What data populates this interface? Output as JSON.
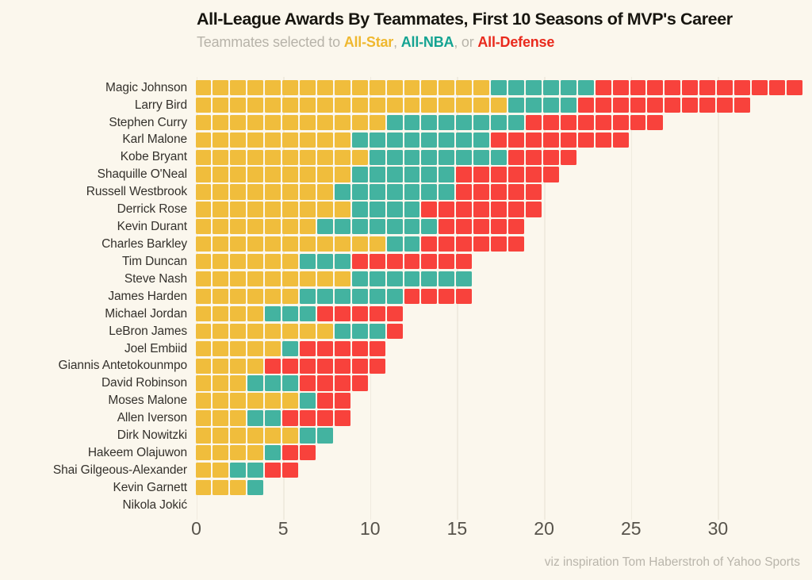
{
  "title": "All-League Awards By Teammates, First 10 Seasons of MVP's Career",
  "subtitle": {
    "prefix": "Teammates selected to ",
    "all_star": "All-Star",
    "sep1": ", ",
    "all_nba": "All-NBA",
    "sep2": ", or ",
    "all_defense": "All-Defense"
  },
  "footer": "viz inspiration Tom Haberstroh of Yahoo Sports",
  "colors": {
    "background": "#FBF7ED",
    "all_star": "#F0BD3C",
    "all_nba": "#43B3A0",
    "all_defense": "#F8423C",
    "subtitle_all_star": "#EFB82F",
    "subtitle_all_nba": "#14A392",
    "subtitle_all_defense": "#E92A1D",
    "gridline": "#F0EBDF",
    "axis_text": "#57534B",
    "label_text": "#34312C",
    "muted_text": "#B7B3A9"
  },
  "chart_data": {
    "type": "bar",
    "stacked": true,
    "orientation": "horizontal",
    "unit": "1 square = 1 award",
    "title": "All-League Awards By Teammates, First 10 Seasons of MVP's Career",
    "subtitle": "Teammates selected to All-Star, All-NBA, or All-Defense",
    "categories": [
      "Magic Johnson",
      "Larry Bird",
      "Stephen Curry",
      "Karl Malone",
      "Kobe Bryant",
      "Shaquille O'Neal",
      "Russell Westbrook",
      "Derrick Rose",
      "Kevin Durant",
      "Charles Barkley",
      "Tim Duncan",
      "Steve Nash",
      "James Harden",
      "Michael Jordan",
      "LeBron James",
      "Joel Embiid",
      "Giannis Antetokounmpo",
      "David Robinson",
      "Moses Malone",
      "Allen Iverson",
      "Dirk Nowitzki",
      "Hakeem Olajuwon",
      "Shai Gilgeous-Alexander",
      "Kevin Garnett",
      "Nikola Jokić"
    ],
    "series": [
      {
        "name": "All-Star",
        "color": "#F0BD3C",
        "values": [
          17,
          18,
          11,
          9,
          10,
          9,
          8,
          9,
          7,
          11,
          6,
          9,
          6,
          4,
          8,
          5,
          4,
          3,
          6,
          3,
          6,
          4,
          2,
          3,
          0
        ]
      },
      {
        "name": "All-NBA",
        "color": "#43B3A0",
        "values": [
          6,
          4,
          8,
          8,
          8,
          6,
          7,
          4,
          7,
          2,
          3,
          7,
          6,
          3,
          3,
          1,
          0,
          3,
          1,
          2,
          2,
          1,
          2,
          1,
          0
        ]
      },
      {
        "name": "All-Defense",
        "color": "#F8423C",
        "values": [
          12,
          10,
          8,
          8,
          4,
          6,
          5,
          7,
          5,
          6,
          7,
          0,
          4,
          5,
          1,
          5,
          7,
          4,
          2,
          4,
          0,
          2,
          2,
          0,
          0
        ]
      }
    ],
    "totals": [
      35,
      32,
      27,
      25,
      22,
      21,
      20,
      20,
      19,
      19,
      16,
      16,
      16,
      12,
      12,
      11,
      11,
      10,
      9,
      9,
      8,
      7,
      6,
      4,
      0
    ],
    "x_ticks": [
      0,
      5,
      10,
      15,
      20,
      25,
      30
    ],
    "xlim": [
      0,
      35.5
    ],
    "grid": "vertical",
    "legend_position": "in-subtitle"
  }
}
